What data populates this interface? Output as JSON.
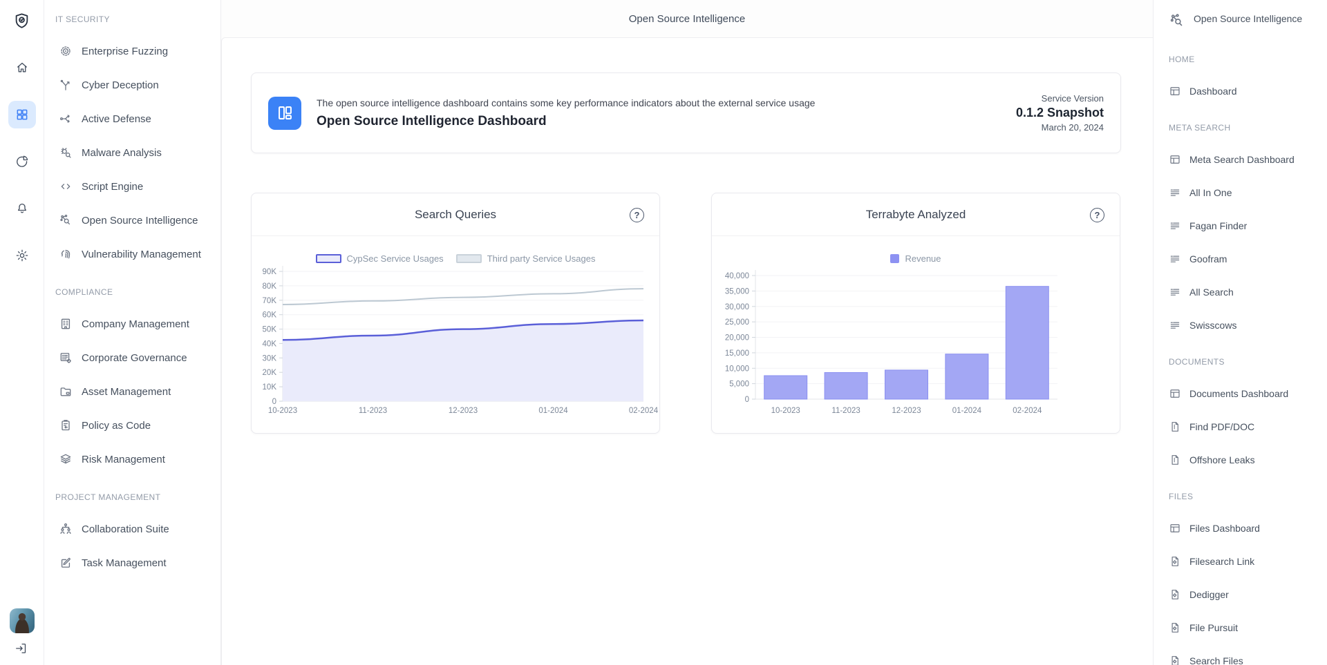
{
  "window": {
    "topbar_title": "Open Source Intelligence"
  },
  "rail": {
    "items": [
      {
        "name": "logo",
        "icon": "shield-logo",
        "active": false
      },
      {
        "name": "home",
        "icon": "home",
        "active": false
      },
      {
        "name": "dashboard",
        "icon": "apps-grid",
        "active": true
      },
      {
        "name": "analytics",
        "icon": "pie-chart",
        "active": false
      },
      {
        "name": "notifications",
        "icon": "bell",
        "active": false
      },
      {
        "name": "settings",
        "icon": "settings-gear",
        "active": false
      }
    ]
  },
  "left_sidebar": {
    "sections": [
      {
        "label": "IT SECURITY",
        "items": [
          {
            "label": "Enterprise Fuzzing",
            "icon": "target"
          },
          {
            "label": "Cyber Deception",
            "icon": "branch"
          },
          {
            "label": "Active Defense",
            "icon": "flow"
          },
          {
            "label": "Malware Analysis",
            "icon": "bug-search"
          },
          {
            "label": "Script Engine",
            "icon": "code"
          },
          {
            "label": "Open Source Intelligence",
            "icon": "network-search"
          },
          {
            "label": "Vulnerability Management",
            "icon": "fingerprint"
          }
        ]
      },
      {
        "label": "COMPLIANCE",
        "items": [
          {
            "label": "Company Management",
            "icon": "building"
          },
          {
            "label": "Corporate Governance",
            "icon": "list-gear"
          },
          {
            "label": "Asset Management",
            "icon": "folder"
          },
          {
            "label": "Policy as Code",
            "icon": "clipboard"
          },
          {
            "label": "Risk Management",
            "icon": "layers-eye"
          }
        ]
      },
      {
        "label": "PROJECT MANAGEMENT",
        "items": [
          {
            "label": "Collaboration Suite",
            "icon": "people"
          },
          {
            "label": "Task Management",
            "icon": "edit"
          }
        ]
      }
    ]
  },
  "hero": {
    "icon": "dashboard-tile",
    "description": "The open source intelligence dashboard contains some key performance indicators about the external service usage",
    "title": "Open Source Intelligence Dashboard",
    "version_label": "Service Version",
    "version_value": "0.1.2 Snapshot",
    "version_date": "March 20, 2024"
  },
  "chart_data": [
    {
      "type": "area",
      "title": "Search Queries",
      "categories": [
        "10-2023",
        "11-2023",
        "12-2023",
        "01-2024",
        "02-2024"
      ],
      "series": [
        {
          "name": "CypSec Service Usages",
          "values": [
            42500,
            45500,
            50000,
            53500,
            56000
          ],
          "color": "#5a5fd8",
          "fill": "#eaebfb",
          "swatch_bg": "#e9eafa",
          "filled": true
        },
        {
          "name": "Third party Service Usages",
          "values": [
            67000,
            69500,
            72000,
            74500,
            78000
          ],
          "color": "#bcc8d2",
          "fill": "none",
          "swatch_bg": "#e2e8ee",
          "filled": false
        }
      ],
      "xlabel": "",
      "ylabel": "",
      "ylim": [
        0,
        90000
      ],
      "ytick_step": 10000,
      "ytick_format": "K",
      "grid": true,
      "legend_position": "top"
    },
    {
      "type": "bar",
      "title": "Terrabyte Analyzed",
      "categories": [
        "10-2023",
        "11-2023",
        "12-2023",
        "01-2024",
        "02-2024"
      ],
      "series": [
        {
          "name": "Revenue",
          "values": [
            7600,
            8600,
            9400,
            14600,
            36500
          ],
          "color": "#a3a7f4",
          "edge": "#8a8ff0",
          "legend_color": "#8d92f2"
        }
      ],
      "xlabel": "",
      "ylabel": "",
      "ylim": [
        0,
        40000
      ],
      "ytick_step": 5000,
      "ytick_format": "comma",
      "grid": true,
      "legend_position": "top"
    }
  ],
  "right_sidebar": {
    "header": {
      "title": "Open Source Intelligence",
      "icon": "network-search"
    },
    "sections": [
      {
        "label": "HOME",
        "items": [
          {
            "label": "Dashboard",
            "icon": "layout-dashboard"
          }
        ]
      },
      {
        "label": "META SEARCH",
        "items": [
          {
            "label": "Meta Search Dashboard",
            "icon": "layout-dashboard"
          },
          {
            "label": "All In One",
            "icon": "list-lines"
          },
          {
            "label": "Fagan Finder",
            "icon": "list-lines"
          },
          {
            "label": "Goofram",
            "icon": "list-lines"
          },
          {
            "label": "All Search",
            "icon": "list-lines"
          },
          {
            "label": "Swisscows",
            "icon": "list-lines"
          }
        ]
      },
      {
        "label": "DOCUMENTS",
        "items": [
          {
            "label": "Documents Dashboard",
            "icon": "layout-dashboard"
          },
          {
            "label": "Find PDF/DOC",
            "icon": "file-doc"
          },
          {
            "label": "Offshore Leaks",
            "icon": "file-doc"
          }
        ]
      },
      {
        "label": "FILES",
        "items": [
          {
            "label": "Files Dashboard",
            "icon": "layout-dashboard"
          },
          {
            "label": "Filesearch Link",
            "icon": "file-gear"
          },
          {
            "label": "Dedigger",
            "icon": "file-gear"
          },
          {
            "label": "File Pursuit",
            "icon": "file-gear"
          },
          {
            "label": "Search Files",
            "icon": "file-gear"
          }
        ]
      }
    ]
  },
  "help_glyph": "?",
  "colors": {
    "accent_blue": "#3b82f6",
    "active_rail_bg": "#dbeafe",
    "chart_purple": "#5a5fd8",
    "chart_bar": "#a3a7f4",
    "chart_gray_line": "#bcc8d2",
    "grid_line": "#f2f2f5",
    "axis_line": "#e3e6ea",
    "axis_text": "#7c8798"
  }
}
